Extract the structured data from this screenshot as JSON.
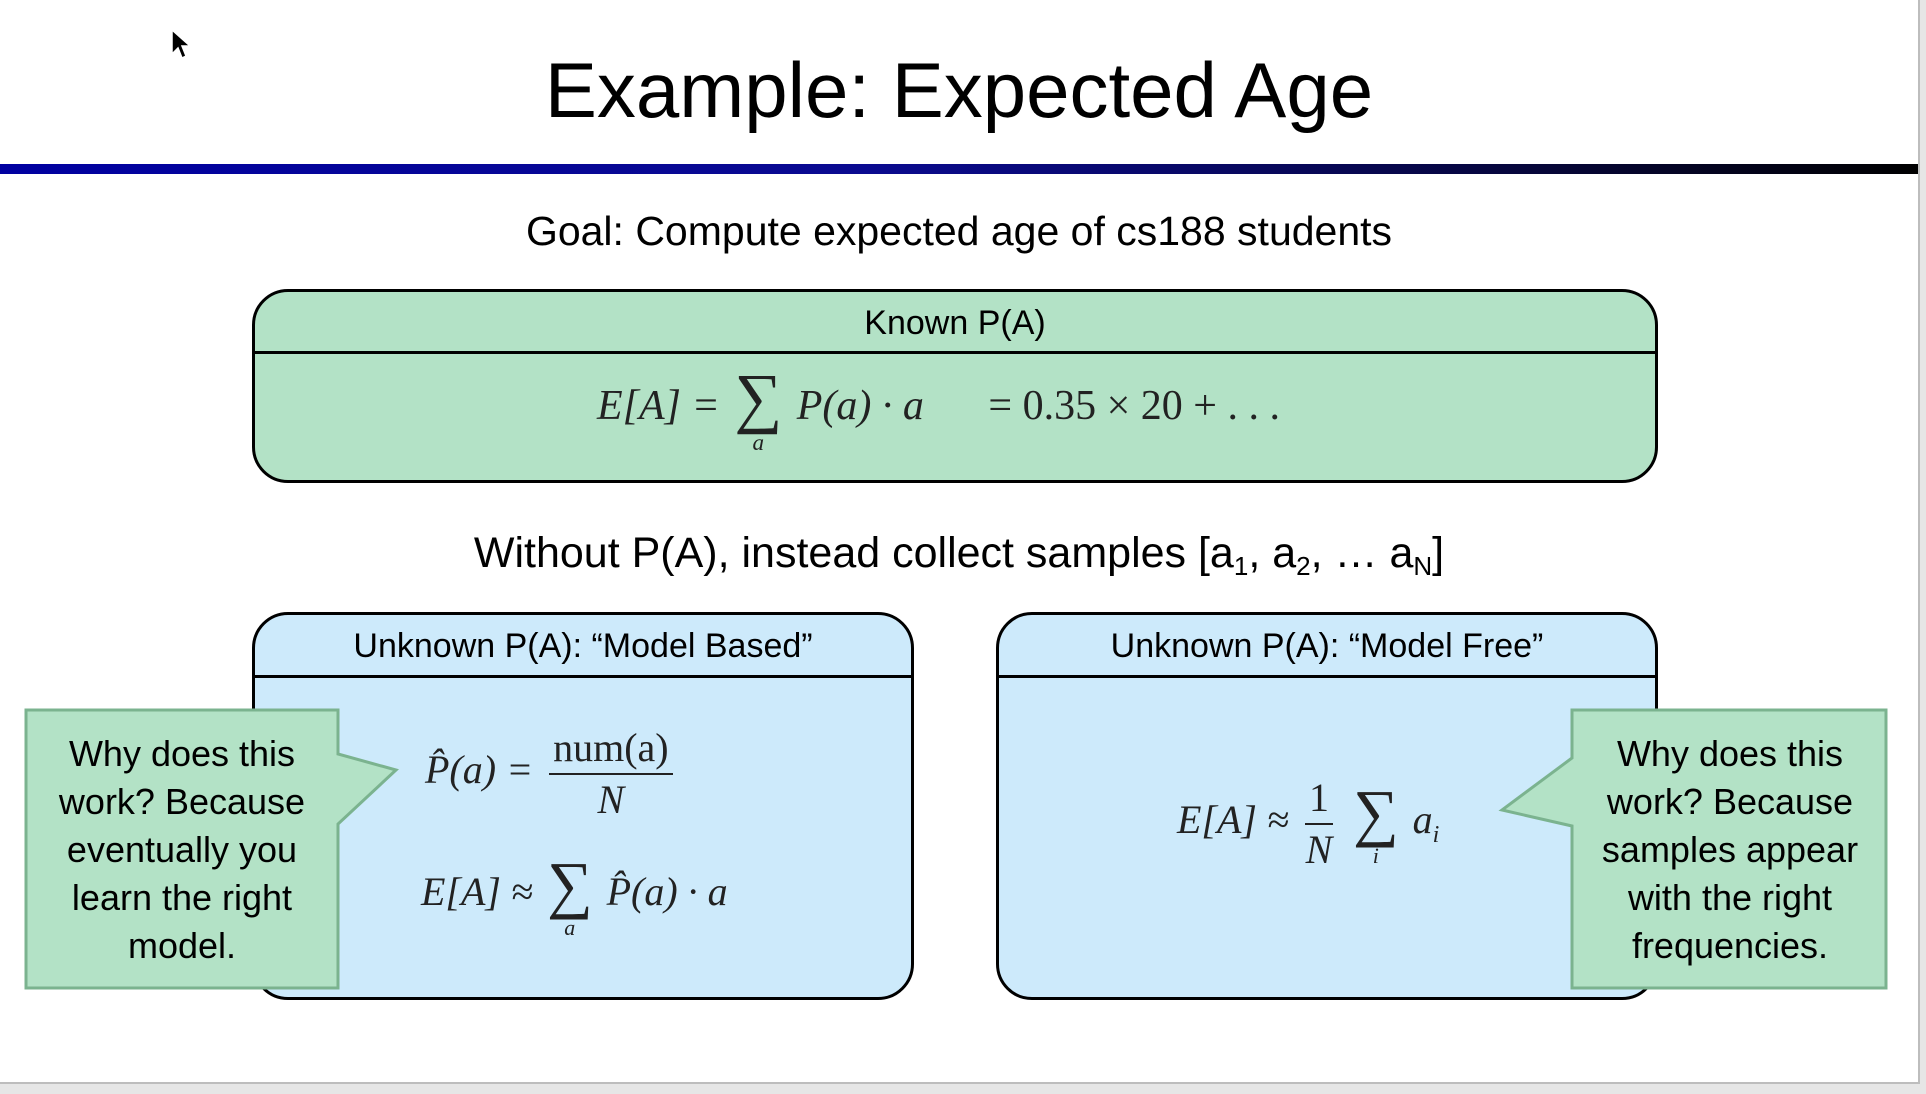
{
  "slide": {
    "title": "Example: Expected Age",
    "goal": "Goal: Compute expected age of cs188 students",
    "known": {
      "header": "Known P(A)",
      "formula_lhs": "E[A] =",
      "sum_symbol": "∑",
      "sum_index": "a",
      "formula_body": "P(a) · a",
      "formula_rhs": "= 0.35 × 20 + . . ."
    },
    "without": {
      "text": "Without P(A), instead collect samples [a",
      "sub1": "1",
      "sep1": ", a",
      "sub2": "2",
      "sep2": ", … a",
      "subN": "N",
      "end": "]"
    },
    "model_based": {
      "header": "Unknown P(A): “Model Based”",
      "phat_lhs": "P̂(a) =",
      "phat_num": "num(a)",
      "phat_den": "N",
      "ea_lhs": "E[A] ≈",
      "sum_symbol": "∑",
      "sum_index": "a",
      "ea_body": "P̂(a) · a",
      "callout": "Why does this work?  Because eventually you learn the right model."
    },
    "model_free": {
      "header": "Unknown P(A): “Model Free”",
      "ea_lhs": "E[A] ≈",
      "frac_num": "1",
      "frac_den": "N",
      "sum_symbol": "∑",
      "sum_index": "i",
      "ea_body": "a",
      "ea_body_sub": "i",
      "callout": "Why does this work?  Because samples appear with the right frequencies."
    }
  },
  "colors": {
    "title_bar_start": "#0000a0",
    "title_bar_end": "#000000",
    "known_fill": "#b3e2c6",
    "unknown_fill": "#cdeafb",
    "callout_fill": "#b3e2c6",
    "callout_border": "#7bb38f"
  },
  "icons": {
    "cursor": "mouse-pointer-icon"
  }
}
